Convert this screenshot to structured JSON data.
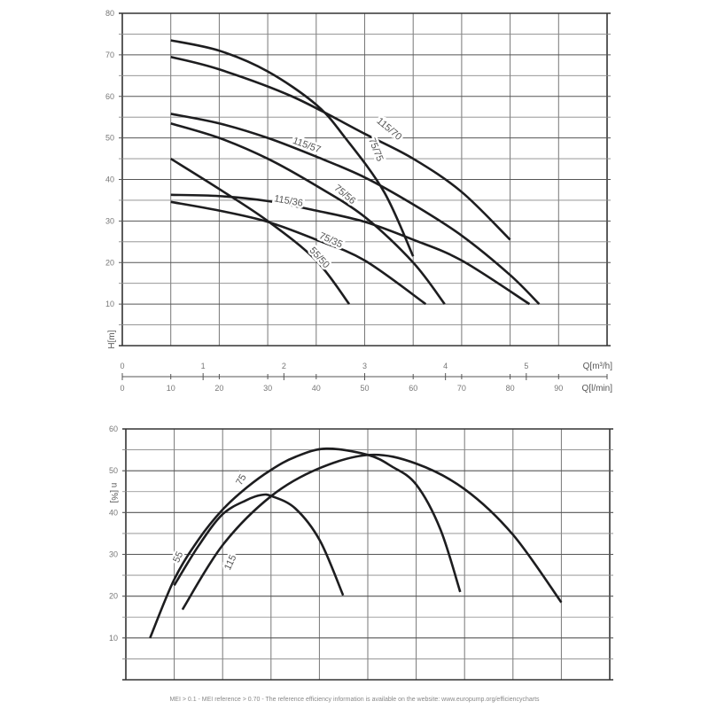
{
  "chart_data": [
    {
      "type": "line",
      "title": "",
      "xlabel": "Q[l/min]",
      "xlabel_secondary": "Q[m³/h]",
      "ylabel": "H[m]",
      "xlim": [
        0,
        100
      ],
      "ylim": [
        0,
        80
      ],
      "grid": true,
      "legend": "inline labels on curves",
      "yticks": [
        10,
        20,
        30,
        40,
        50,
        60,
        70,
        80
      ],
      "xticks_lmin": [
        0,
        10,
        20,
        30,
        40,
        50,
        60,
        70,
        80,
        90
      ],
      "xticks_m3h": [
        0,
        1,
        2,
        3,
        4,
        5
      ],
      "series": [
        {
          "name": "115/70",
          "points": [
            [
              10,
              69.5
            ],
            [
              20,
              66.5
            ],
            [
              35,
              60
            ],
            [
              50,
              51
            ],
            [
              60,
              45
            ],
            [
              70,
              37
            ],
            [
              80,
              25.5
            ]
          ]
        },
        {
          "name": "75/75",
          "points": [
            [
              10,
              73.5
            ],
            [
              20,
              71
            ],
            [
              30,
              66
            ],
            [
              40,
              58
            ],
            [
              46,
              50
            ],
            [
              54,
              37
            ],
            [
              60,
              21.5
            ]
          ]
        },
        {
          "name": "115/57",
          "points": [
            [
              10,
              55.8
            ],
            [
              20,
              53.5
            ],
            [
              30,
              50
            ],
            [
              40,
              45.5
            ],
            [
              50,
              40.5
            ],
            [
              60,
              34
            ],
            [
              70,
              26.5
            ],
            [
              80,
              17
            ],
            [
              86,
              10
            ]
          ]
        },
        {
          "name": "75/56",
          "points": [
            [
              10,
              53.5
            ],
            [
              20,
              50
            ],
            [
              30,
              45
            ],
            [
              40,
              38.5
            ],
            [
              50,
              31
            ],
            [
              60,
              20
            ],
            [
              66.5,
              10
            ]
          ]
        },
        {
          "name": "115/36",
          "points": [
            [
              10,
              36.3
            ],
            [
              20,
              36
            ],
            [
              30,
              34.8
            ],
            [
              40,
              32.5
            ],
            [
              50,
              29.8
            ],
            [
              60,
              25.5
            ],
            [
              70,
              20.5
            ],
            [
              84,
              10
            ]
          ]
        },
        {
          "name": "75/35",
          "points": [
            [
              10,
              34.6
            ],
            [
              20,
              32.5
            ],
            [
              30,
              29.8
            ],
            [
              40,
              25.5
            ],
            [
              50,
              20.5
            ],
            [
              62.6,
              10
            ]
          ]
        },
        {
          "name": "55/50",
          "points": [
            [
              10,
              45
            ],
            [
              20,
              37.7
            ],
            [
              30,
              30
            ],
            [
              40,
              20.5
            ],
            [
              46.8,
              10
            ]
          ]
        }
      ]
    },
    {
      "type": "line",
      "title": "",
      "xlabel": "",
      "ylabel": "n [%]",
      "xlim": [
        0,
        100
      ],
      "ylim": [
        0,
        60
      ],
      "grid": true,
      "legend": "inline labels on curves",
      "yticks": [
        10,
        20,
        30,
        40,
        50,
        60
      ],
      "series": [
        {
          "name": "55",
          "points": [
            [
              10,
              22.6
            ],
            [
              15,
              32
            ],
            [
              20,
              39.6
            ],
            [
              25,
              43
            ],
            [
              28,
              44.2
            ],
            [
              30.2,
              43.9
            ],
            [
              35,
              41
            ],
            [
              40.1,
              33.3
            ],
            [
              44.9,
              20.2
            ]
          ]
        },
        {
          "name": "75",
          "points": [
            [
              5,
              10
            ],
            [
              10,
              24
            ],
            [
              15,
              33.5
            ],
            [
              20,
              40.7
            ],
            [
              25,
              46
            ],
            [
              30,
              50.2
            ],
            [
              35,
              53.3
            ],
            [
              41.4,
              55.3
            ],
            [
              50,
              53.8
            ],
            [
              55,
              51
            ],
            [
              60,
              46.7
            ],
            [
              65,
              36
            ],
            [
              69.1,
              21
            ]
          ]
        },
        {
          "name": "115",
          "points": [
            [
              11.7,
              16.8
            ],
            [
              20,
              32.2
            ],
            [
              30,
              43.9
            ],
            [
              40,
              50.6
            ],
            [
              50.5,
              53.8
            ],
            [
              60,
              51.7
            ],
            [
              70,
              45.6
            ],
            [
              80,
              34.7
            ],
            [
              90,
              18.5
            ]
          ]
        }
      ]
    }
  ],
  "footer": "MEI > 0.1 - MEI reference > 0.70 - The reference efficiency information is available on the website: www.europump.org/efficiencycharts"
}
